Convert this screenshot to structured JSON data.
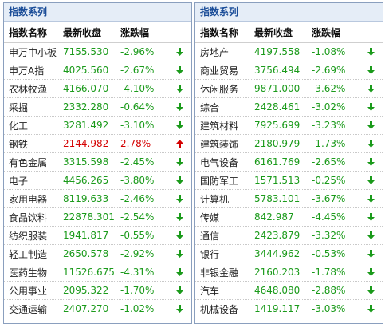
{
  "panels": [
    {
      "title": "指数系列",
      "headers": {
        "name": "指数名称",
        "close": "最新收盘",
        "change": "涨跌幅"
      },
      "rows": [
        {
          "name": "申万中小板",
          "close": "7155.530",
          "change": "-2.96%",
          "direction": "down"
        },
        {
          "name": "申万A指",
          "close": "4025.560",
          "change": "-2.67%",
          "direction": "down"
        },
        {
          "name": "农林牧渔",
          "close": "4166.070",
          "change": "-4.10%",
          "direction": "down"
        },
        {
          "name": "采掘",
          "close": "2332.280",
          "change": "-0.64%",
          "direction": "down"
        },
        {
          "name": "化工",
          "close": "3281.492",
          "change": "-3.10%",
          "direction": "down"
        },
        {
          "name": "钢铁",
          "close": "2144.982",
          "change": "2.78%",
          "direction": "up"
        },
        {
          "name": "有色金属",
          "close": "3315.598",
          "change": "-2.45%",
          "direction": "down"
        },
        {
          "name": "电子",
          "close": "4456.265",
          "change": "-3.80%",
          "direction": "down"
        },
        {
          "name": "家用电器",
          "close": "8119.633",
          "change": "-2.46%",
          "direction": "down"
        },
        {
          "name": "食品饮料",
          "close": "22878.301",
          "change": "-2.54%",
          "direction": "down"
        },
        {
          "name": "纺织服装",
          "close": "1941.817",
          "change": "-0.55%",
          "direction": "down"
        },
        {
          "name": "轻工制造",
          "close": "2650.578",
          "change": "-2.92%",
          "direction": "down"
        },
        {
          "name": "医药生物",
          "close": "11526.675",
          "change": "-4.31%",
          "direction": "down"
        },
        {
          "name": "公用事业",
          "close": "2095.322",
          "change": "-1.70%",
          "direction": "down"
        },
        {
          "name": "交通运输",
          "close": "2407.270",
          "change": "-1.02%",
          "direction": "down"
        }
      ]
    },
    {
      "title": "指数系列",
      "headers": {
        "name": "指数名称",
        "close": "最新收盘",
        "change": "涨跌幅"
      },
      "rows": [
        {
          "name": "房地产",
          "close": "4197.558",
          "change": "-1.08%",
          "direction": "down"
        },
        {
          "name": "商业贸易",
          "close": "3756.494",
          "change": "-2.69%",
          "direction": "down"
        },
        {
          "name": "休闲服务",
          "close": "9871.000",
          "change": "-3.62%",
          "direction": "down"
        },
        {
          "name": "综合",
          "close": "2428.461",
          "change": "-3.02%",
          "direction": "down"
        },
        {
          "name": "建筑材料",
          "close": "7925.699",
          "change": "-3.23%",
          "direction": "down"
        },
        {
          "name": "建筑装饰",
          "close": "2180.979",
          "change": "-1.73%",
          "direction": "down"
        },
        {
          "name": "电气设备",
          "close": "6161.769",
          "change": "-2.65%",
          "direction": "down"
        },
        {
          "name": "国防军工",
          "close": "1571.513",
          "change": "-0.25%",
          "direction": "down"
        },
        {
          "name": "计算机",
          "close": "5783.101",
          "change": "-3.67%",
          "direction": "down"
        },
        {
          "name": "传媒",
          "close": "842.987",
          "change": "-4.45%",
          "direction": "down"
        },
        {
          "name": "通信",
          "close": "2423.879",
          "change": "-3.32%",
          "direction": "down"
        },
        {
          "name": "银行",
          "close": "3444.962",
          "change": "-0.53%",
          "direction": "down"
        },
        {
          "name": "非银金融",
          "close": "2160.203",
          "change": "-1.78%",
          "direction": "down"
        },
        {
          "name": "汽车",
          "close": "4648.080",
          "change": "-2.88%",
          "direction": "down"
        },
        {
          "name": "机械设备",
          "close": "1419.117",
          "change": "-3.03%",
          "direction": "down"
        }
      ]
    }
  ],
  "colors": {
    "up": "#d40000",
    "down": "#1a9a1a",
    "title": "#1b4d98"
  }
}
